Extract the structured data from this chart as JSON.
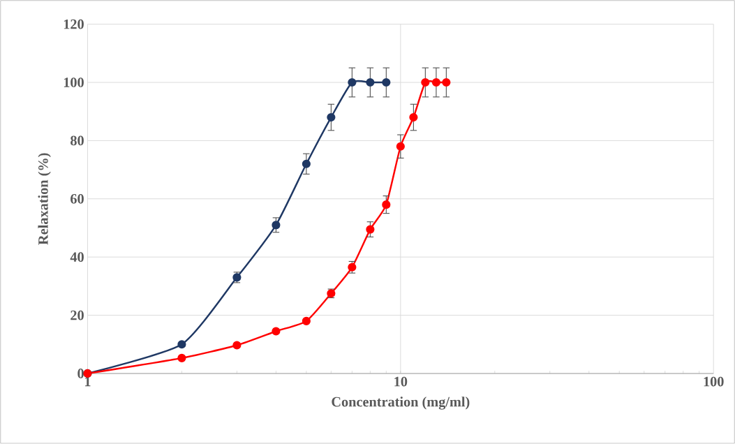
{
  "chart_data": {
    "type": "line",
    "xlabel": "Concentration (mg/ml)",
    "ylabel": "Relaxation (%)",
    "log": "x",
    "xlim": [
      1,
      100
    ],
    "xticks": [
      1,
      10,
      100
    ],
    "ylim": [
      0,
      120
    ],
    "yticks": [
      0,
      20,
      40,
      60,
      80,
      100,
      120
    ],
    "grid": true,
    "marker": "circle",
    "line_style": "solid",
    "series": [
      {
        "color": "#1f3864",
        "x": [
          1,
          2,
          3,
          4,
          5,
          6,
          7,
          8,
          9
        ],
        "values": [
          0,
          10,
          33,
          51,
          72,
          88,
          100,
          100,
          100
        ],
        "errors": [
          null,
          null,
          1.8,
          2.5,
          3.5,
          4.5,
          5,
          5,
          5
        ]
      },
      {
        "color": "#ff0000",
        "x": [
          1,
          2,
          3,
          4,
          5,
          6,
          7,
          8,
          9,
          10,
          11,
          12,
          13,
          14
        ],
        "values": [
          0,
          5.3,
          9.7,
          14.5,
          18,
          27.5,
          36.5,
          49.5,
          58,
          78,
          88,
          100,
          100,
          100
        ],
        "errors": [
          null,
          null,
          null,
          null,
          null,
          1.5,
          2,
          2.6,
          3,
          4,
          4.5,
          5,
          5,
          5
        ]
      }
    ]
  }
}
